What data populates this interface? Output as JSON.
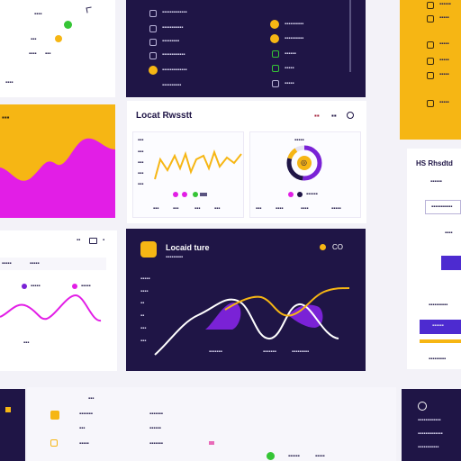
{
  "top_left_card": {
    "rows": [
      "▪▪▪▪",
      "▪▪▪",
      "▪▪▪▪",
      "▪▪▪"
    ],
    "footer": "▪▪▪▪"
  },
  "top_dark_panel": {
    "left_items": [
      "▪▪▪▪▪▪▪▪▪▪▪▪▪",
      "▪▪▪▪▪▪▪▪▪▪▪",
      "▪▪▪▪▪▪▪▪▪",
      "▪▪▪▪▪▪▪▪▪▪▪▪",
      "▪▪▪▪▪▪▪▪▪▪▪▪▪",
      "▪▪▪▪▪▪▪▪▪▪"
    ],
    "right_items": [
      "▪▪▪▪▪▪▪▪▪▪",
      "▪▪▪▪▪▪▪▪▪▪",
      "▪▪▪▪▪▪",
      "▪▪▪▪▪"
    ]
  },
  "right_yellow_panel": {
    "items": [
      "▪▪▪▪▪▪",
      "▪▪▪▪▪",
      "▪▪▪▪▪",
      "▪▪▪▪▪",
      "▪▪▪▪▪",
      "▪▪▪▪▪"
    ]
  },
  "magenta_card": {
    "title": "▪▪▪"
  },
  "main_card": {
    "title": "Locat Rwsstt",
    "header_icons": [
      "▪▪",
      "▪▪"
    ],
    "line_panel_labels": [
      "▪▪▪",
      "▪▪▪",
      "▪▪▪",
      "▪▪▪",
      "▪▪▪",
      "▪▪▪"
    ],
    "line_panel_xticks": [
      "▪▪▪",
      "▪▪▪",
      "▪▪▪",
      "▪▪▪"
    ],
    "donut_label": "▪▪▪▪▪",
    "donut_center": "◎",
    "donut_legend": "▪▪▪▪▪▪",
    "donut_xticks": [
      "▪▪▪",
      "▪▪▪▪",
      "▪▪▪▪",
      "▪▪▪▪▪"
    ]
  },
  "left_mid_card": {
    "header_icons": [
      "▪▪",
      "▪"
    ],
    "rows": [
      {
        "label": "▪▪▪▪▪",
        "value": "▪▪▪▪▪"
      },
      {
        "label": "▪▪▪▪▪",
        "value": "▪▪▪▪▪"
      }
    ],
    "footer": "▪▪▪"
  },
  "dark_chart_card": {
    "title": "Locaid ture",
    "subtitle": "▪▪▪▪▪▪▪▪▪",
    "controls": "CO",
    "y_labels": [
      "▪▪▪▪▪",
      "▪▪▪▪",
      "▪▪",
      "▪▪",
      "▪▪▪",
      "▪▪▪"
    ],
    "x_labels": [
      "▪▪▪▪▪▪▪",
      "▪▪▪▪▪▪▪",
      "▪▪▪▪▪▪▪▪▪"
    ]
  },
  "right_white_panel": {
    "title": "HS Rhsdtd",
    "subtitle": "▪▪▪▪▪▪",
    "field_value": "▪▪▪▪▪▪▪▪▪▪▪",
    "caption": "▪▪▪▪",
    "link": "▪▪▪▪▪▪▪▪▪▪",
    "button_label": "▪▪▪▪▪▪",
    "footer": "▪▪▪▪▪▪▪▪▪"
  },
  "bottom_right_dark": {
    "rows": [
      "▪▪▪▪▪▪▪▪▪▪▪▪",
      "▪▪▪▪▪▪▪▪▪▪▪▪▪",
      "▪▪▪▪▪▪▪▪▪▪▪"
    ]
  },
  "bottom_strip": {
    "items": [
      "▪▪▪",
      "▪▪▪▪▪▪▪",
      "▪▪▪▪▪▪▪",
      "▪▪▪",
      "▪▪▪▪▪▪",
      "▪▪▪▪▪",
      "▪▪▪▪▪▪▪"
    ]
  },
  "colors": {
    "navy": "#1f1546",
    "yellow": "#f6b614",
    "magenta": "#e21ee6",
    "purple": "#7a22d6",
    "accent_purple": "#4d2bd0"
  }
}
